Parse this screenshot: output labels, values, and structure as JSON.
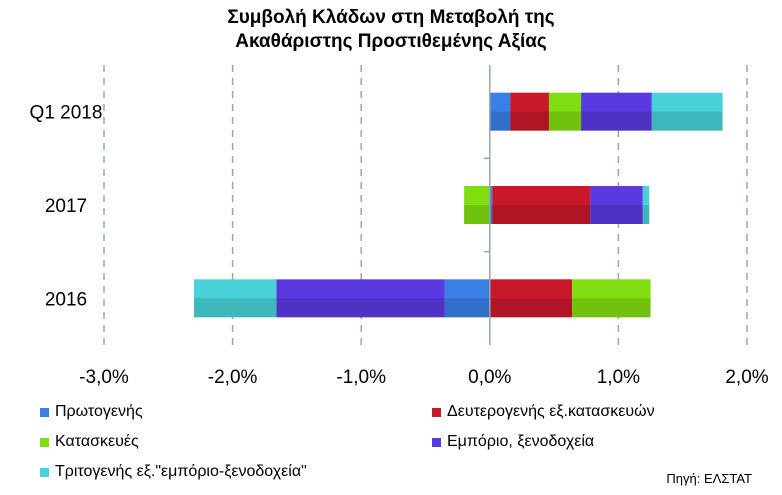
{
  "chart_data": {
    "type": "bar",
    "orientation": "horizontal",
    "stacked": true,
    "title": "Συμβολή Κλάδων στη Μεταβολή της Ακαθάριστης Προστιθεμένης Αξίας",
    "title_lines": [
      "Συμβολή Κλάδων στη Μεταβολή της",
      "Ακαθάριστης Προστιθεμένης Αξίας"
    ],
    "categories": [
      "Q1 2018",
      "2017",
      "2016"
    ],
    "xlim": [
      -3.0,
      2.0
    ],
    "xticks": [
      -3,
      -2,
      -1,
      0,
      1,
      2
    ],
    "xtick_labels": [
      "-3,0%",
      "-2,0%",
      "-1,0%",
      "0,0%",
      "1,0%",
      "2,0%"
    ],
    "grid": "vertical dashed",
    "legend_position": "bottom",
    "series": [
      {
        "name": "Πρωτογενής",
        "color": "#3a7fe6",
        "values": [
          0.16,
          0.02,
          -0.35
        ]
      },
      {
        "name": "Δευτερογενής  εξ.κατασκευών",
        "color": "#c8182a",
        "values": [
          0.3,
          0.76,
          0.64
        ]
      },
      {
        "name": "Κατασκευές",
        "color": "#80dd10",
        "values": [
          0.25,
          -0.2,
          0.61
        ]
      },
      {
        "name": "Εμπόριο, ξενοδοχεία",
        "color": "#5a3ae0",
        "values": [
          0.55,
          0.41,
          -1.31
        ]
      },
      {
        "name": "Τριτογενής εξ.\"εμπόριο-ξενοδοχεία\"",
        "color": "#48d2d8",
        "values": [
          0.55,
          0.05,
          -0.64
        ]
      }
    ]
  },
  "source": "Πηγή: ΕΛΣΤΑΤ"
}
